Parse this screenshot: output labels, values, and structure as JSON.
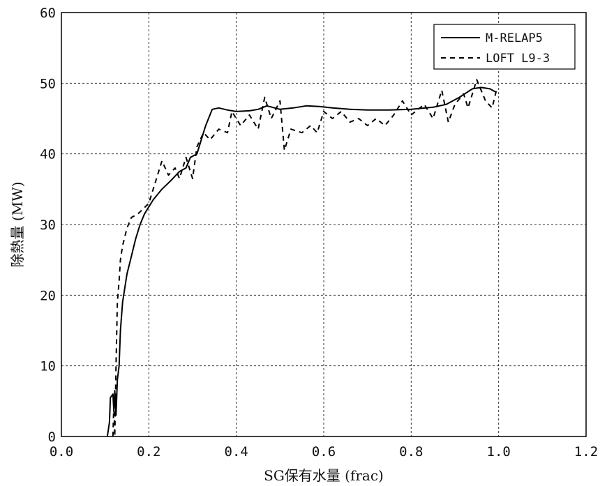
{
  "chart_data": {
    "type": "line",
    "title": "",
    "xlabel": "SG保有水量 (frac)",
    "ylabel": "除熱量 (MW)",
    "xlim": [
      0.0,
      1.2
    ],
    "ylim": [
      0,
      60
    ],
    "xticks": [
      "0.0",
      "0.2",
      "0.4",
      "0.6",
      "0.8",
      "1.0",
      "1.2"
    ],
    "yticks": [
      "0",
      "10",
      "20",
      "30",
      "40",
      "50",
      "60"
    ],
    "grid": true,
    "legend_position": "top-right",
    "series": [
      {
        "name": "M-RELAP5",
        "style": "solid",
        "points": [
          [
            0.105,
            0
          ],
          [
            0.11,
            2
          ],
          [
            0.112,
            5.5
          ],
          [
            0.118,
            6
          ],
          [
            0.12,
            3.5
          ],
          [
            0.122,
            6.5
          ],
          [
            0.125,
            3
          ],
          [
            0.128,
            8
          ],
          [
            0.132,
            10
          ],
          [
            0.135,
            15
          ],
          [
            0.14,
            19
          ],
          [
            0.15,
            23
          ],
          [
            0.16,
            25.5
          ],
          [
            0.17,
            28
          ],
          [
            0.18,
            30
          ],
          [
            0.19,
            31.5
          ],
          [
            0.2,
            32.5
          ],
          [
            0.21,
            33.5
          ],
          [
            0.23,
            35
          ],
          [
            0.25,
            36.2
          ],
          [
            0.27,
            37.5
          ],
          [
            0.285,
            38
          ],
          [
            0.295,
            39.5
          ],
          [
            0.31,
            40
          ],
          [
            0.32,
            42
          ],
          [
            0.33,
            44
          ],
          [
            0.345,
            46.3
          ],
          [
            0.36,
            46.5
          ],
          [
            0.38,
            46.2
          ],
          [
            0.4,
            46
          ],
          [
            0.43,
            46.1
          ],
          [
            0.45,
            46.3
          ],
          [
            0.47,
            46.8
          ],
          [
            0.5,
            46.3
          ],
          [
            0.53,
            46.5
          ],
          [
            0.56,
            46.8
          ],
          [
            0.59,
            46.7
          ],
          [
            0.62,
            46.5
          ],
          [
            0.66,
            46.3
          ],
          [
            0.7,
            46.2
          ],
          [
            0.75,
            46.2
          ],
          [
            0.8,
            46.3
          ],
          [
            0.85,
            46.6
          ],
          [
            0.88,
            47
          ],
          [
            0.91,
            48
          ],
          [
            0.94,
            49.2
          ],
          [
            0.96,
            49.4
          ],
          [
            0.98,
            49.2
          ],
          [
            0.995,
            48.7
          ]
        ]
      },
      {
        "name": "LOFT L9-3",
        "style": "dashed",
        "points": [
          [
            0.118,
            0
          ],
          [
            0.12,
            5
          ],
          [
            0.122,
            0
          ],
          [
            0.125,
            10
          ],
          [
            0.128,
            19
          ],
          [
            0.132,
            22
          ],
          [
            0.135,
            25
          ],
          [
            0.14,
            27
          ],
          [
            0.15,
            29.5
          ],
          [
            0.16,
            31
          ],
          [
            0.175,
            31.5
          ],
          [
            0.2,
            33
          ],
          [
            0.215,
            36
          ],
          [
            0.23,
            39
          ],
          [
            0.245,
            37
          ],
          [
            0.26,
            38
          ],
          [
            0.27,
            36.5
          ],
          [
            0.285,
            39.5
          ],
          [
            0.3,
            36.5
          ],
          [
            0.31,
            41
          ],
          [
            0.325,
            43
          ],
          [
            0.34,
            42
          ],
          [
            0.36,
            43.5
          ],
          [
            0.38,
            43
          ],
          [
            0.39,
            46
          ],
          [
            0.41,
            44
          ],
          [
            0.43,
            45.5
          ],
          [
            0.45,
            43.5
          ],
          [
            0.465,
            48
          ],
          [
            0.48,
            45
          ],
          [
            0.5,
            47.5
          ],
          [
            0.51,
            40.5
          ],
          [
            0.525,
            43.5
          ],
          [
            0.55,
            43
          ],
          [
            0.57,
            44
          ],
          [
            0.585,
            43
          ],
          [
            0.6,
            46
          ],
          [
            0.62,
            45
          ],
          [
            0.64,
            46
          ],
          [
            0.66,
            44.5
          ],
          [
            0.68,
            45
          ],
          [
            0.7,
            44
          ],
          [
            0.72,
            45
          ],
          [
            0.74,
            44
          ],
          [
            0.76,
            45.5
          ],
          [
            0.78,
            47.5
          ],
          [
            0.8,
            45.5
          ],
          [
            0.83,
            47
          ],
          [
            0.85,
            45
          ],
          [
            0.87,
            49
          ],
          [
            0.885,
            44.5
          ],
          [
            0.9,
            47
          ],
          [
            0.92,
            48.5
          ],
          [
            0.93,
            46.5
          ],
          [
            0.95,
            50.5
          ],
          [
            0.97,
            47.5
          ],
          [
            0.985,
            46.5
          ],
          [
            0.995,
            49
          ]
        ]
      }
    ]
  }
}
